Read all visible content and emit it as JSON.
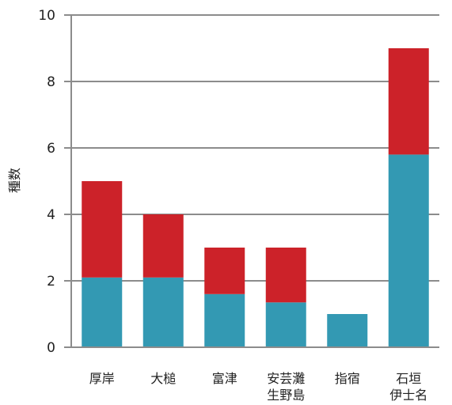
{
  "chart_data": {
    "type": "bar",
    "stacked": true,
    "ylabel": "種数",
    "xlabel": "",
    "ylim": [
      0,
      10
    ],
    "yticks": [
      0,
      2,
      4,
      6,
      8,
      10
    ],
    "grid": true,
    "categories": [
      [
        "厚岸"
      ],
      [
        "大槌"
      ],
      [
        "富津"
      ],
      [
        "安芸灘",
        "生野島"
      ],
      [
        "指宿"
      ],
      [
        "石垣",
        "伊士名"
      ]
    ],
    "series": [
      {
        "color": "#3399b3",
        "values": [
          2.1,
          2.1,
          1.6,
          1.35,
          1.0,
          5.8
        ]
      },
      {
        "color": "#cc2229",
        "values": [
          2.9,
          1.9,
          1.4,
          1.65,
          0.0,
          3.2
        ]
      }
    ]
  }
}
